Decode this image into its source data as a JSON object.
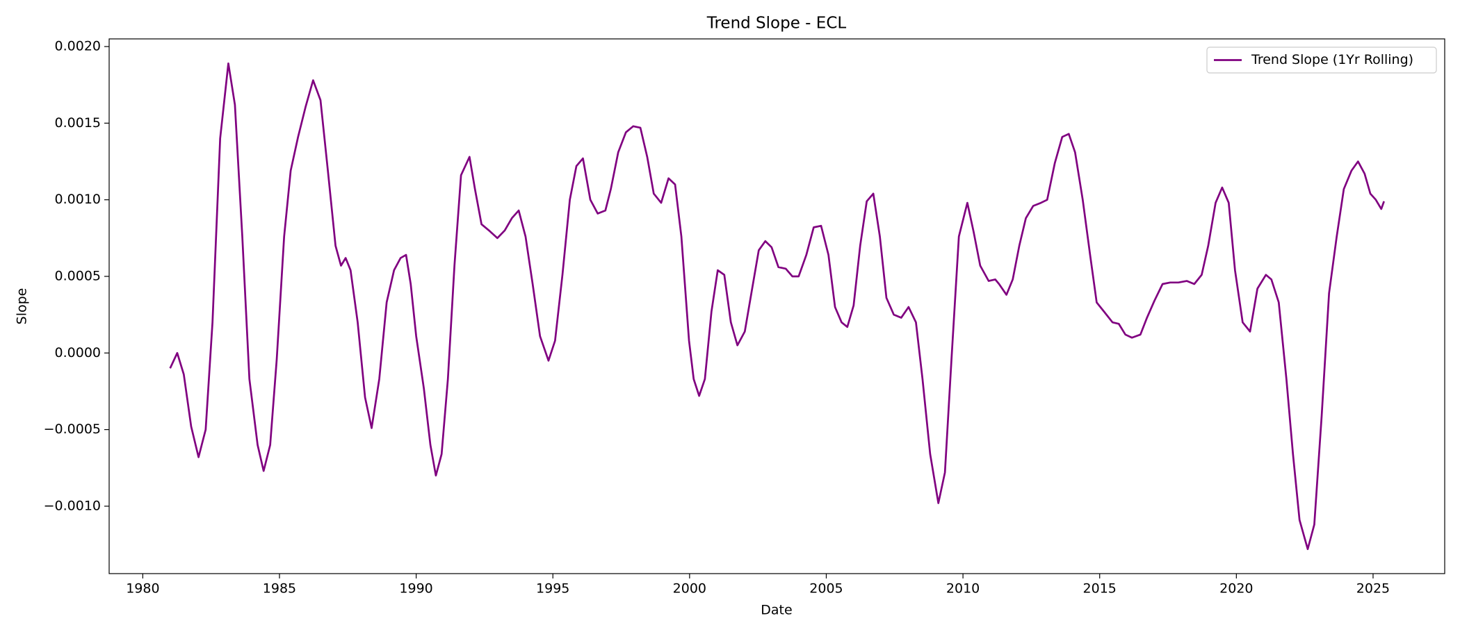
{
  "chart_data": {
    "type": "line",
    "title": "Trend Slope - ECL",
    "xlabel": "Date",
    "ylabel": "Slope",
    "x": [
      1981.0,
      1981.26,
      1981.5,
      1981.77,
      1982.04,
      1982.3,
      1982.55,
      1982.83,
      1983.13,
      1983.37,
      1983.64,
      1983.9,
      1984.2,
      1984.42,
      1984.66,
      1984.9,
      1985.17,
      1985.41,
      1985.68,
      1985.96,
      1986.23,
      1986.5,
      1986.77,
      1987.05,
      1987.25,
      1987.42,
      1987.6,
      1987.86,
      1988.13,
      1988.37,
      1988.65,
      1988.92,
      1989.19,
      1989.43,
      1989.63,
      1989.8,
      1990.0,
      1990.28,
      1990.52,
      1990.72,
      1990.93,
      1991.16,
      1991.4,
      1991.64,
      1991.95,
      1992.15,
      1992.39,
      1992.66,
      1992.97,
      1993.24,
      1993.5,
      1993.75,
      1994.0,
      1994.26,
      1994.53,
      1994.84,
      1995.08,
      1995.35,
      1995.62,
      1995.86,
      1996.1,
      1996.37,
      1996.64,
      1996.92,
      1997.12,
      1997.39,
      1997.67,
      1997.94,
      1998.2,
      1998.45,
      1998.69,
      1998.96,
      1999.23,
      1999.47,
      1999.7,
      1999.98,
      2000.15,
      2000.35,
      2000.56,
      2000.8,
      2001.03,
      2001.27,
      2001.51,
      2001.75,
      2002.02,
      2002.26,
      2002.53,
      2002.77,
      2003.0,
      2003.25,
      2003.52,
      2003.76,
      2003.99,
      2004.27,
      2004.54,
      2004.81,
      2005.08,
      2005.32,
      2005.56,
      2005.77,
      2006.0,
      2006.24,
      2006.48,
      2006.72,
      2006.96,
      2007.2,
      2007.47,
      2007.74,
      2008.01,
      2008.28,
      2008.52,
      2008.8,
      2009.1,
      2009.34,
      2009.58,
      2009.85,
      2010.16,
      2010.39,
      2010.63,
      2010.94,
      2011.18,
      2011.32,
      2011.59,
      2011.82,
      2012.06,
      2012.3,
      2012.57,
      2012.85,
      2013.08,
      2013.36,
      2013.63,
      2013.87,
      2014.1,
      2014.38,
      2014.65,
      2014.89,
      2015.16,
      2015.47,
      2015.7,
      2015.94,
      2016.18,
      2016.49,
      2016.73,
      2017.0,
      2017.3,
      2017.58,
      2017.88,
      2018.19,
      2018.46,
      2018.73,
      2018.97,
      2019.24,
      2019.48,
      2019.72,
      2019.95,
      2020.23,
      2020.5,
      2020.77,
      2021.08,
      2021.28,
      2021.55,
      2021.83,
      2022.07,
      2022.31,
      2022.61,
      2022.85,
      2023.12,
      2023.39,
      2023.67,
      2023.93,
      2024.21,
      2024.45,
      2024.69,
      2024.9,
      2025.1,
      2025.3,
      2025.4
    ],
    "series": [
      {
        "name": "Trend Slope (1Yr Rolling)",
        "color": "#800080",
        "values": [
          -0.0001,
          0.0,
          -0.00014,
          -0.00048,
          -0.00068,
          -0.0005,
          0.0002,
          0.0014,
          0.00189,
          0.00162,
          0.00076,
          -0.00017,
          -0.0006,
          -0.00077,
          -0.0006,
          -4e-05,
          0.00076,
          0.00119,
          0.00141,
          0.00161,
          0.00178,
          0.00165,
          0.00119,
          0.0007,
          0.00057,
          0.00062,
          0.00054,
          0.0002,
          -0.00029,
          -0.00049,
          -0.00017,
          0.00033,
          0.00054,
          0.00062,
          0.00064,
          0.00045,
          0.00011,
          -0.00023,
          -0.0006,
          -0.0008,
          -0.00066,
          -0.00017,
          0.00057,
          0.00116,
          0.00128,
          0.00107,
          0.00084,
          0.0008,
          0.00075,
          0.0008,
          0.00088,
          0.00093,
          0.00076,
          0.00045,
          0.00011,
          -5e-05,
          8e-05,
          0.00051,
          0.001,
          0.00122,
          0.00127,
          0.001,
          0.00091,
          0.00093,
          0.00107,
          0.00131,
          0.00144,
          0.00148,
          0.00147,
          0.00128,
          0.00104,
          0.00098,
          0.00114,
          0.0011,
          0.00076,
          8e-05,
          -0.00017,
          -0.00028,
          -0.00017,
          0.00027,
          0.00054,
          0.00051,
          0.0002,
          5e-05,
          0.00014,
          0.00039,
          0.00067,
          0.00073,
          0.00069,
          0.00056,
          0.00055,
          0.0005,
          0.0005,
          0.00064,
          0.00082,
          0.00083,
          0.00064,
          0.0003,
          0.0002,
          0.00017,
          0.00031,
          0.0007,
          0.00099,
          0.00104,
          0.00076,
          0.00036,
          0.00025,
          0.00023,
          0.0003,
          0.0002,
          -0.00017,
          -0.00066,
          -0.00098,
          -0.00078,
          -4e-05,
          0.00076,
          0.00098,
          0.00079,
          0.00057,
          0.00047,
          0.00048,
          0.00045,
          0.00038,
          0.00048,
          0.0007,
          0.00088,
          0.00096,
          0.00098,
          0.001,
          0.00124,
          0.00141,
          0.00143,
          0.00131,
          0.001,
          0.00064,
          0.00033,
          0.00027,
          0.0002,
          0.00019,
          0.00012,
          0.0001,
          0.00012,
          0.00023,
          0.00034,
          0.00045,
          0.00046,
          0.00046,
          0.00047,
          0.00045,
          0.00051,
          0.0007,
          0.00098,
          0.00108,
          0.00098,
          0.00054,
          0.0002,
          0.00014,
          0.00042,
          0.00051,
          0.00048,
          0.00033,
          -0.00017,
          -0.00066,
          -0.00109,
          -0.00128,
          -0.00112,
          -0.00041,
          0.00039,
          0.00076,
          0.00107,
          0.00119,
          0.00125,
          0.00117,
          0.00104,
          0.001,
          0.00094,
          0.00099
        ]
      }
    ],
    "xlim": [
      1978.77,
      2027.62
    ],
    "xticks": [
      1980,
      1985,
      1990,
      1995,
      2000,
      2005,
      2010,
      2015,
      2020,
      2025
    ],
    "ylim": [
      -0.00144,
      0.00205
    ],
    "yticks": [
      {
        "value": -0.001,
        "label": "−0.0010"
      },
      {
        "value": -0.0005,
        "label": "−0.0005"
      },
      {
        "value": 0,
        "label": "0.0000"
      },
      {
        "value": 0.0005,
        "label": "0.0005"
      },
      {
        "value": 0.001,
        "label": "0.0010"
      },
      {
        "value": 0.0015,
        "label": "0.0015"
      },
      {
        "value": 0.002,
        "label": "0.0020"
      }
    ],
    "legend": "upper right",
    "grid": false
  }
}
